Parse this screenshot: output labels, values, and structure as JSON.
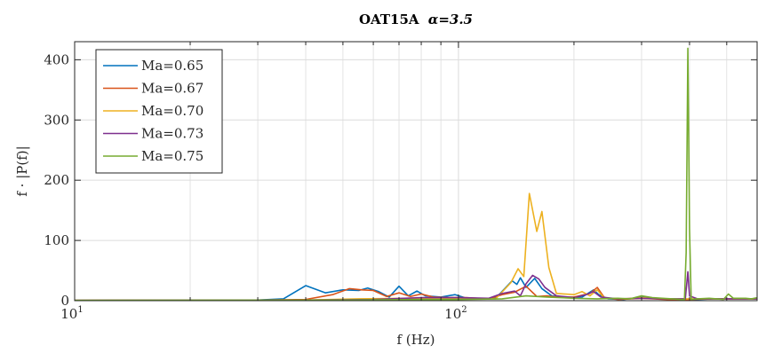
{
  "chart_data": {
    "type": "line",
    "title": "OAT15A",
    "title_math": "α=3.5",
    "xlabel": "f (Hz)",
    "ylabel": "f · |P(f)|",
    "xscale": "log",
    "xlim": [
      10,
      600
    ],
    "ylim": [
      0,
      430
    ],
    "grid": true,
    "legend_position": "top-left",
    "x_major_ticks": [
      {
        "value": 10,
        "base": "10",
        "exp": "1"
      },
      {
        "value": 100,
        "base": "10",
        "exp": "2"
      }
    ],
    "x_minor_ticks": [
      20,
      30,
      40,
      50,
      60,
      70,
      80,
      90,
      200,
      300,
      400,
      500,
      600
    ],
    "y_ticks": [
      {
        "value": 0,
        "label": "0"
      },
      {
        "value": 100,
        "label": "100"
      },
      {
        "value": 200,
        "label": "200"
      },
      {
        "value": 300,
        "label": "300"
      },
      {
        "value": 400,
        "label": "400"
      }
    ],
    "series": [
      {
        "name": "Ma=0.65",
        "color": "#0072bd",
        "points": [
          [
            10,
            0.5
          ],
          [
            20,
            0.5
          ],
          [
            30,
            1
          ],
          [
            35,
            3
          ],
          [
            40,
            25
          ],
          [
            45,
            13
          ],
          [
            50,
            18
          ],
          [
            55,
            17
          ],
          [
            58,
            21
          ],
          [
            62,
            15
          ],
          [
            66,
            6
          ],
          [
            70,
            24
          ],
          [
            74,
            8
          ],
          [
            78,
            16
          ],
          [
            82,
            8
          ],
          [
            90,
            6
          ],
          [
            98,
            10
          ],
          [
            105,
            4
          ],
          [
            115,
            3
          ],
          [
            125,
            4
          ],
          [
            138,
            33
          ],
          [
            142,
            27
          ],
          [
            145,
            38
          ],
          [
            150,
            22
          ],
          [
            158,
            37
          ],
          [
            165,
            20
          ],
          [
            175,
            8
          ],
          [
            190,
            5
          ],
          [
            210,
            6
          ],
          [
            225,
            18
          ],
          [
            232,
            10
          ],
          [
            245,
            3
          ],
          [
            270,
            2
          ],
          [
            300,
            6
          ],
          [
            330,
            3
          ],
          [
            360,
            3
          ],
          [
            390,
            2
          ],
          [
            396,
            2
          ],
          [
            420,
            2
          ],
          [
            460,
            3
          ],
          [
            500,
            3
          ],
          [
            550,
            3
          ],
          [
            600,
            3
          ]
        ]
      },
      {
        "name": "Ma=0.67",
        "color": "#d95319",
        "points": [
          [
            10,
            0.5
          ],
          [
            30,
            1
          ],
          [
            40,
            2
          ],
          [
            47,
            10
          ],
          [
            52,
            20
          ],
          [
            56,
            18
          ],
          [
            60,
            17
          ],
          [
            65,
            7
          ],
          [
            70,
            13
          ],
          [
            75,
            7
          ],
          [
            80,
            11
          ],
          [
            86,
            6
          ],
          [
            95,
            5
          ],
          [
            105,
            5
          ],
          [
            112,
            4
          ],
          [
            120,
            3
          ],
          [
            130,
            10
          ],
          [
            140,
            14
          ],
          [
            150,
            24
          ],
          [
            160,
            7
          ],
          [
            170,
            8
          ],
          [
            180,
            6
          ],
          [
            200,
            6
          ],
          [
            220,
            12
          ],
          [
            230,
            22
          ],
          [
            240,
            5
          ],
          [
            260,
            2
          ],
          [
            300,
            4
          ],
          [
            350,
            2
          ],
          [
            400,
            2
          ],
          [
            450,
            3
          ],
          [
            500,
            3
          ],
          [
            600,
            3
          ]
        ]
      },
      {
        "name": "Ma=0.70",
        "color": "#edb120",
        "points": [
          [
            10,
            0.5
          ],
          [
            40,
            1
          ],
          [
            55,
            3
          ],
          [
            75,
            4
          ],
          [
            100,
            4
          ],
          [
            125,
            3
          ],
          [
            137,
            30
          ],
          [
            143,
            53
          ],
          [
            148,
            40
          ],
          [
            153,
            178
          ],
          [
            160,
            115
          ],
          [
            165,
            148
          ],
          [
            172,
            55
          ],
          [
            180,
            12
          ],
          [
            200,
            10
          ],
          [
            210,
            15
          ],
          [
            220,
            8
          ],
          [
            230,
            18
          ],
          [
            240,
            4
          ],
          [
            270,
            3
          ],
          [
            300,
            5
          ],
          [
            350,
            3
          ],
          [
            400,
            3
          ],
          [
            450,
            3
          ],
          [
            500,
            3
          ],
          [
            600,
            3
          ]
        ]
      },
      {
        "name": "Ma=0.73",
        "color": "#7e2f8e",
        "points": [
          [
            10,
            0.5
          ],
          [
            40,
            1
          ],
          [
            60,
            2
          ],
          [
            80,
            5
          ],
          [
            100,
            5
          ],
          [
            120,
            4
          ],
          [
            130,
            12
          ],
          [
            140,
            16
          ],
          [
            145,
            8
          ],
          [
            150,
            28
          ],
          [
            156,
            42
          ],
          [
            162,
            36
          ],
          [
            168,
            22
          ],
          [
            180,
            8
          ],
          [
            200,
            5
          ],
          [
            215,
            10
          ],
          [
            225,
            15
          ],
          [
            235,
            6
          ],
          [
            260,
            3
          ],
          [
            300,
            4
          ],
          [
            350,
            3
          ],
          [
            390,
            3
          ],
          [
            396,
            48
          ],
          [
            400,
            8
          ],
          [
            420,
            3
          ],
          [
            500,
            3
          ],
          [
            600,
            3
          ]
        ]
      },
      {
        "name": "Ma=0.75",
        "color": "#77ac30",
        "points": [
          [
            10,
            0.5
          ],
          [
            50,
            1
          ],
          [
            80,
            2
          ],
          [
            100,
            2
          ],
          [
            130,
            3
          ],
          [
            150,
            8
          ],
          [
            170,
            6
          ],
          [
            200,
            4
          ],
          [
            230,
            3
          ],
          [
            260,
            4
          ],
          [
            280,
            3
          ],
          [
            300,
            8
          ],
          [
            320,
            5
          ],
          [
            340,
            4
          ],
          [
            360,
            3
          ],
          [
            380,
            2
          ],
          [
            388,
            2
          ],
          [
            392,
            80
          ],
          [
            396,
            419
          ],
          [
            400,
            120
          ],
          [
            404,
            2
          ],
          [
            420,
            3
          ],
          [
            450,
            4
          ],
          [
            470,
            3
          ],
          [
            490,
            2
          ],
          [
            505,
            11
          ],
          [
            520,
            4
          ],
          [
            560,
            4
          ],
          [
            580,
            3
          ],
          [
            600,
            5
          ]
        ]
      }
    ]
  }
}
